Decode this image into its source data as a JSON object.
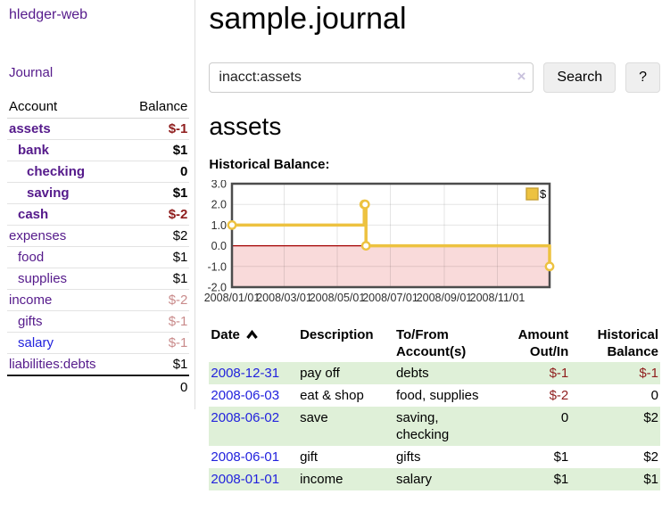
{
  "sidebar": {
    "app_title": "hledger-web",
    "journal_label": "Journal",
    "accounts_table": {
      "headers": [
        "Account",
        "Balance"
      ],
      "rows": [
        {
          "account": "assets",
          "depth": 1,
          "bold": true,
          "balance": "$-1",
          "negative": true,
          "muted": false,
          "blue_link": false
        },
        {
          "account": "bank",
          "depth": 2,
          "bold": true,
          "balance": "$1",
          "negative": false,
          "muted": false,
          "blue_link": false
        },
        {
          "account": "checking",
          "depth": 3,
          "bold": true,
          "balance": "0",
          "negative": false,
          "muted": false,
          "blue_link": false
        },
        {
          "account": "saving",
          "depth": 3,
          "bold": true,
          "balance": "$1",
          "negative": false,
          "muted": false,
          "blue_link": false
        },
        {
          "account": "cash",
          "depth": 2,
          "bold": true,
          "balance": "$-2",
          "negative": true,
          "muted": false,
          "blue_link": false
        },
        {
          "account": "expenses",
          "depth": 1,
          "bold": false,
          "balance": "$2",
          "negative": false,
          "muted": false,
          "blue_link": false
        },
        {
          "account": "food",
          "depth": 2,
          "bold": false,
          "balance": "$1",
          "negative": false,
          "muted": false,
          "blue_link": false
        },
        {
          "account": "supplies",
          "depth": 2,
          "bold": false,
          "balance": "$1",
          "negative": false,
          "muted": false,
          "blue_link": false
        },
        {
          "account": "income",
          "depth": 1,
          "bold": false,
          "balance": "$-2",
          "negative": true,
          "muted": true,
          "blue_link": false
        },
        {
          "account": "gifts",
          "depth": 2,
          "bold": false,
          "balance": "$-1",
          "negative": true,
          "muted": true,
          "blue_link": false
        },
        {
          "account": "salary",
          "depth": 2,
          "bold": false,
          "balance": "$-1",
          "negative": true,
          "muted": true,
          "blue_link": true
        },
        {
          "account": "liabilities:debts",
          "depth": 1,
          "bold": false,
          "balance": "$1",
          "negative": false,
          "muted": false,
          "blue_link": false
        }
      ],
      "total": "0"
    }
  },
  "main": {
    "title": "sample.journal",
    "search": {
      "value": "inacct:assets",
      "clear_icon": "×",
      "button_label": "Search",
      "help_label": "?"
    },
    "account_heading": "assets"
  },
  "register": {
    "sort": {
      "column": "Date",
      "direction": "ascending"
    },
    "headers": [
      "Date",
      "Description",
      "To/From Account(s)",
      "Amount Out/In",
      "Historical Balance"
    ],
    "rows": [
      {
        "date": "2008-12-31",
        "description": "pay off",
        "accounts": "debts",
        "amount": "$-1",
        "balance": "$-1"
      },
      {
        "date": "2008-06-03",
        "description": "eat & shop",
        "accounts": "food, supplies",
        "amount": "$-2",
        "balance": "0"
      },
      {
        "date": "2008-06-02",
        "description": "save",
        "accounts": "saving, checking",
        "amount": "0",
        "balance": "$2"
      },
      {
        "date": "2008-06-01",
        "description": "gift",
        "accounts": "gifts",
        "amount": "$1",
        "balance": "$2"
      },
      {
        "date": "2008-01-01",
        "description": "income",
        "accounts": "salary",
        "amount": "$1",
        "balance": "$1"
      }
    ]
  },
  "chart_data": {
    "type": "line",
    "style": "step-after",
    "title": "Historical Balance:",
    "legend": "$",
    "legend_position": "top-right",
    "grid": true,
    "x_range": [
      "2008-01-01",
      "2008-12-31"
    ],
    "ylim": [
      -2,
      3
    ],
    "y_ticks": [
      "3.0",
      "2.0",
      "1.0",
      "0.0",
      "-1.0",
      "-2.0"
    ],
    "x_ticks": [
      "2008/01/01",
      "2008/03/01",
      "2008/05/01",
      "2008/07/01",
      "2008/09/01",
      "2008/11/01"
    ],
    "series": [
      {
        "name": "$",
        "color": "#edc240",
        "points": [
          [
            "2008-01-01",
            1
          ],
          [
            "2008-06-01",
            2
          ],
          [
            "2008-06-02",
            2
          ],
          [
            "2008-06-03",
            0
          ],
          [
            "2008-12-31",
            -1
          ]
        ]
      }
    ],
    "negative_region_color": "#f9dada",
    "zero_line_color": "#a40000"
  },
  "colors": {
    "link_purple": "#551a8b",
    "link_blue": "#2222dd",
    "negative_dark": "#8f1d1d",
    "negative_muted": "#c98b8b",
    "row_highlight_green": "#dff0d8",
    "chart_line_gold": "#edc240",
    "chart_negative_region": "#f9dada",
    "chart_zero_line": "#a40000",
    "chart_border": "#4c4c4c"
  }
}
